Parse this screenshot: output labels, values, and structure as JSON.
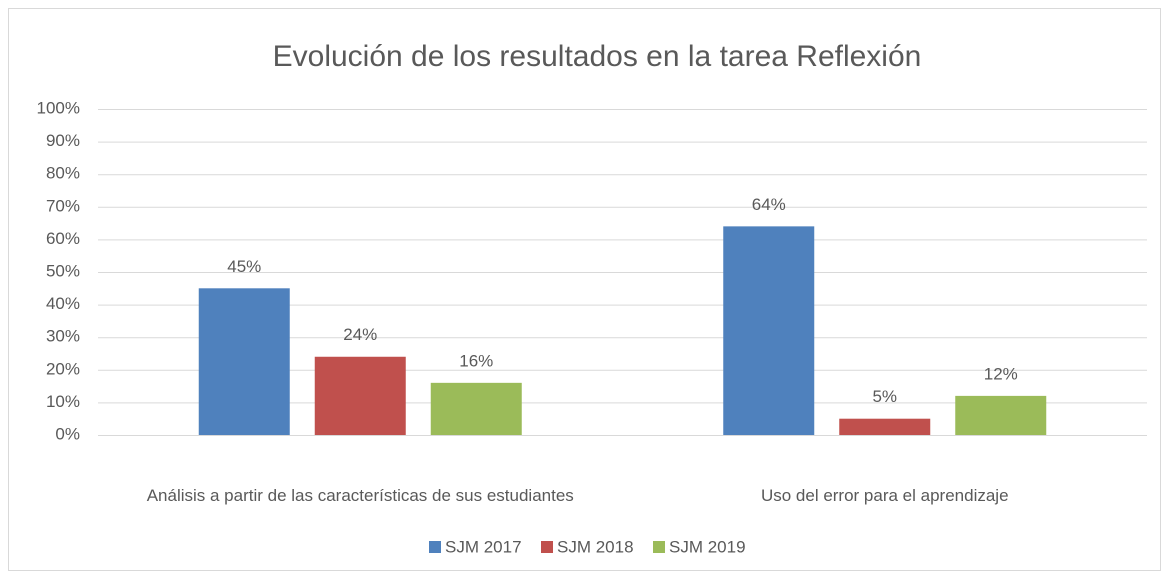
{
  "chart_data": {
    "type": "bar",
    "title": "Evolución de los resultados en la tarea Reflexión",
    "categories": [
      "Análisis a partir de las características de sus estudiantes",
      "Uso del error para el aprendizaje"
    ],
    "series": [
      {
        "name": "SJM 2017",
        "color": "#4f81bd",
        "values": [
          45,
          64
        ],
        "value_labels": [
          "45%",
          "64%"
        ]
      },
      {
        "name": "SJM 2018",
        "color": "#c0504d",
        "values": [
          24,
          5
        ],
        "value_labels": [
          "24%",
          "5%"
        ]
      },
      {
        "name": "SJM 2019",
        "color": "#9bbb59",
        "values": [
          16,
          12
        ],
        "value_labels": [
          "16%",
          "12%"
        ]
      }
    ],
    "ylim": [
      0,
      100
    ],
    "yticks": [
      {
        "value": 0,
        "label": "0%"
      },
      {
        "value": 10,
        "label": "10%"
      },
      {
        "value": 20,
        "label": "20%"
      },
      {
        "value": 30,
        "label": "30%"
      },
      {
        "value": 40,
        "label": "40%"
      },
      {
        "value": 50,
        "label": "50%"
      },
      {
        "value": 60,
        "label": "60%"
      },
      {
        "value": 70,
        "label": "70%"
      },
      {
        "value": 80,
        "label": "80%"
      },
      {
        "value": 90,
        "label": "90%"
      },
      {
        "value": 100,
        "label": "100%"
      }
    ],
    "grid": true,
    "legend": "bottom"
  }
}
